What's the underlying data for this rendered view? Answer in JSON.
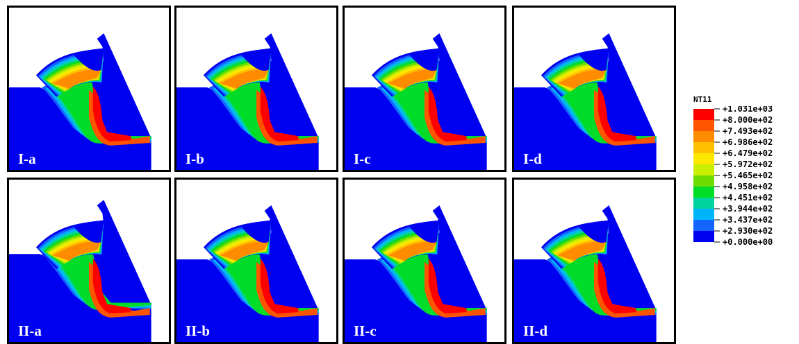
{
  "panels": [
    {
      "label": "I-a",
      "variant": "Ia"
    },
    {
      "label": "I-b",
      "variant": "Ib"
    },
    {
      "label": "I-c",
      "variant": "Ic"
    },
    {
      "label": "I-d",
      "variant": "Id"
    },
    {
      "label": "II-a",
      "variant": "IIa"
    },
    {
      "label": "II-b",
      "variant": "IIb"
    },
    {
      "label": "II-c",
      "variant": "IIc"
    },
    {
      "label": "II-d",
      "variant": "IId"
    }
  ],
  "legend": {
    "title": "NT11",
    "labels": [
      "+1.031e+03",
      "+8.000e+02",
      "+7.493e+02",
      "+6.986e+02",
      "+6.479e+02",
      "+5.972e+02",
      "+5.465e+02",
      "+4.958e+02",
      "+4.451e+02",
      "+3.944e+02",
      "+3.437e+02",
      "+2.930e+02",
      "+0.000e+00"
    ],
    "colors": [
      "#ff0000",
      "#ff5400",
      "#ff8c00",
      "#ffc000",
      "#ffe800",
      "#c8f000",
      "#6edc00",
      "#00dc28",
      "#00d2a0",
      "#00b4ff",
      "#1464ff",
      "#0000f0"
    ]
  }
}
